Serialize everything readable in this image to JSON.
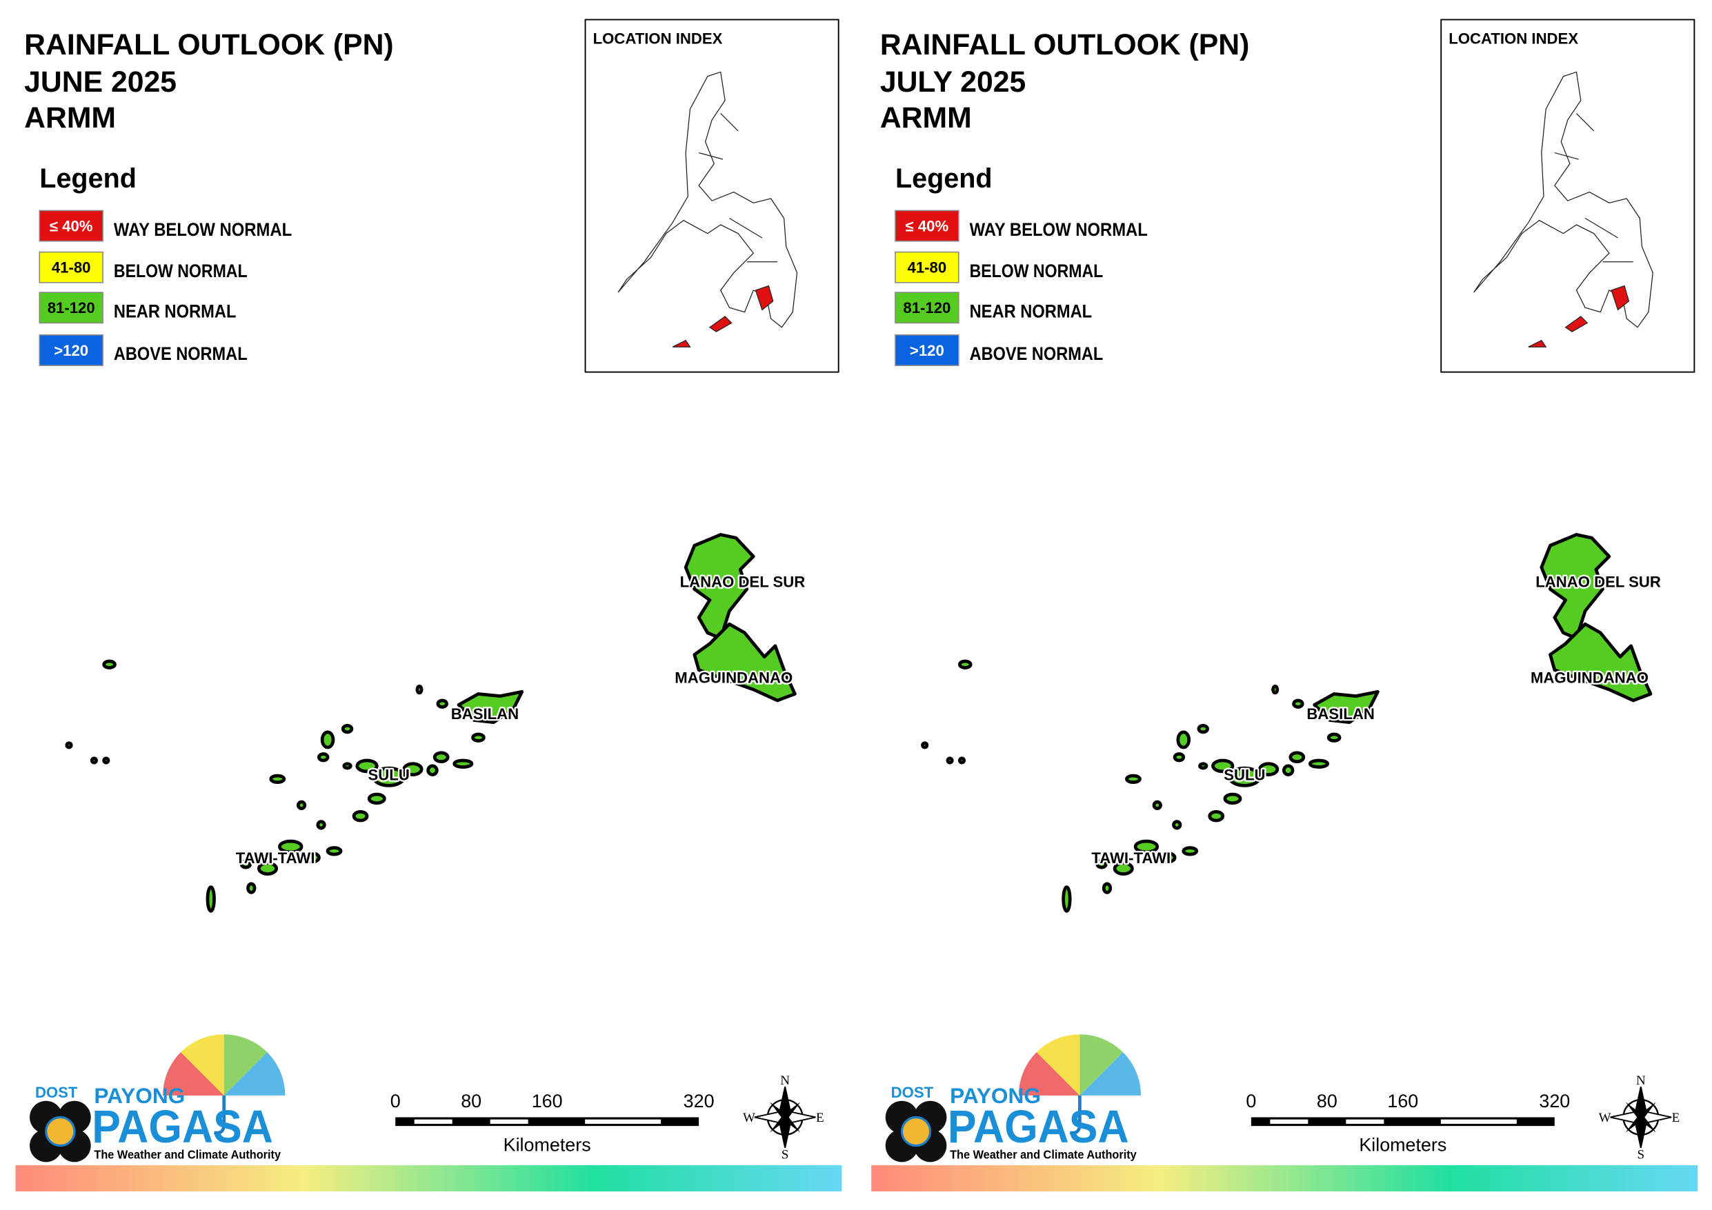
{
  "panels": [
    {
      "title": [
        "RAINFALL OUTLOOK (PN)",
        "JUNE 2025",
        "ARMM"
      ],
      "legend_title": "Legend",
      "legend": [
        {
          "box": "≤ 40%",
          "label": "WAY BELOW NORMAL",
          "color": "#e01010",
          "text_color": "#ffffff"
        },
        {
          "box": "41-80",
          "label": "BELOW NORMAL",
          "color": "#ffff00",
          "text_color": "#000000"
        },
        {
          "box": "81-120",
          "label": "NEAR NORMAL",
          "color": "#55cc22",
          "text_color": "#000000"
        },
        {
          "box": ">120",
          "label": "ABOVE NORMAL",
          "color": "#0a64e0",
          "text_color": "#ffffff"
        }
      ],
      "location_index": "LOCATION INDEX",
      "regions": [
        "LANAO DEL SUR",
        "MAGUINDANAO",
        "BASILAN",
        "SULU",
        "TAWI-TAWI"
      ],
      "scale": {
        "ticks": [
          0,
          80,
          160,
          320
        ],
        "unit": "Kilometers"
      },
      "compass": {
        "n": "N",
        "e": "E",
        "s": "S",
        "w": "W"
      },
      "logo": {
        "dost": "DOST",
        "payong": "PAYONG",
        "pagasa": "PAGASA",
        "tagline": "The Weather and Climate Authority"
      }
    },
    {
      "title": [
        "RAINFALL OUTLOOK (PN)",
        "JULY 2025",
        "ARMM"
      ],
      "legend_title": "Legend",
      "legend": [
        {
          "box": "≤ 40%",
          "label": "WAY BELOW NORMAL",
          "color": "#e01010",
          "text_color": "#ffffff"
        },
        {
          "box": "41-80",
          "label": "BELOW NORMAL",
          "color": "#ffff00",
          "text_color": "#000000"
        },
        {
          "box": "81-120",
          "label": "NEAR NORMAL",
          "color": "#55cc22",
          "text_color": "#000000"
        },
        {
          "box": ">120",
          "label": "ABOVE NORMAL",
          "color": "#0a64e0",
          "text_color": "#ffffff"
        }
      ],
      "location_index": "LOCATION INDEX",
      "regions": [
        "LANAO DEL SUR",
        "MAGUINDANAO",
        "BASILAN",
        "SULU",
        "TAWI-TAWI"
      ],
      "scale": {
        "ticks": [
          0,
          80,
          160,
          320
        ],
        "unit": "Kilometers"
      },
      "compass": {
        "n": "N",
        "e": "E",
        "s": "S",
        "w": "W"
      },
      "logo": {
        "dost": "DOST",
        "payong": "PAYONG",
        "pagasa": "PAGASA",
        "tagline": "The Weather and Climate Authority"
      }
    }
  ]
}
